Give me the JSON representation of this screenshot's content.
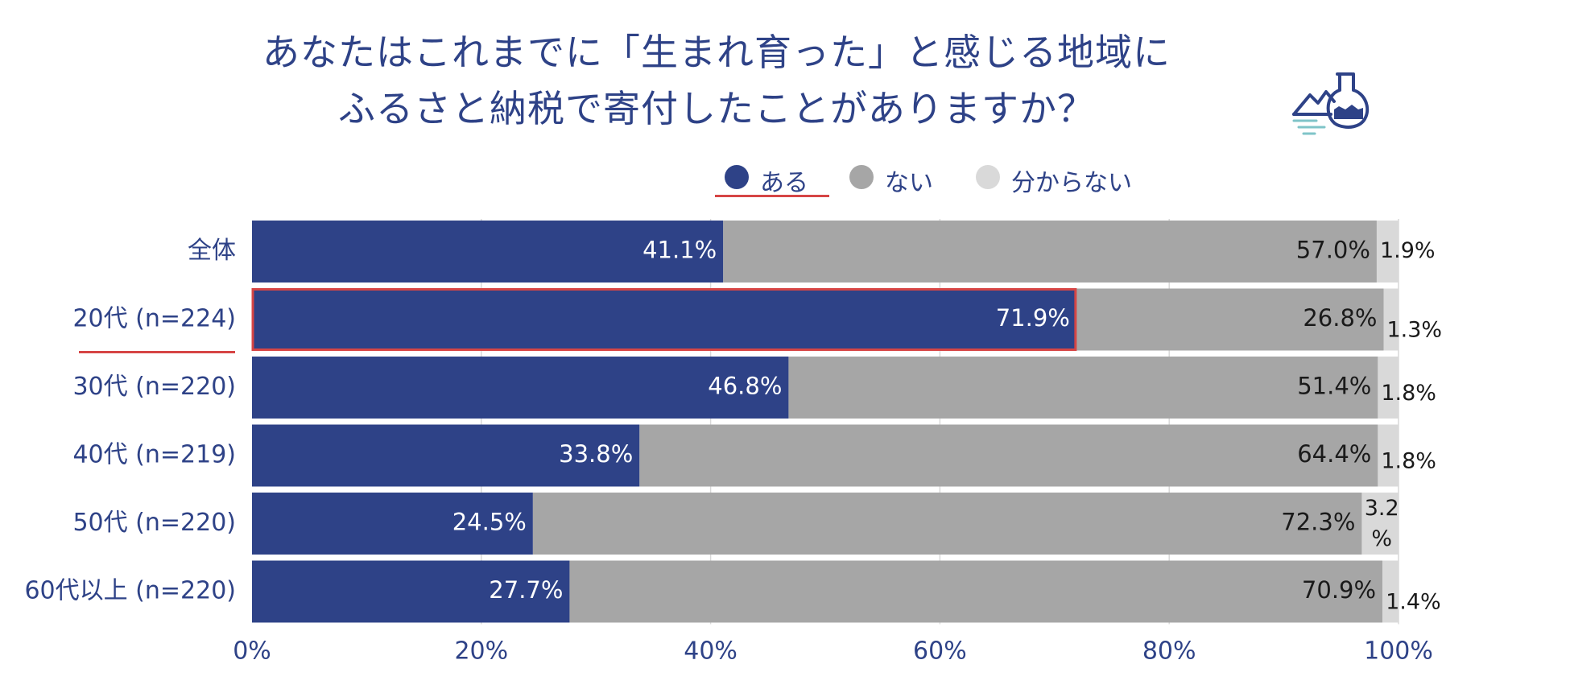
{
  "title": {
    "line1": "あなたはこれまでに「生まれ育った」と感じる地域に",
    "line2": "ふるさと納税で寄付したことがありますか？"
  },
  "legend": [
    {
      "label": "ある",
      "color": "#2e4287"
    },
    {
      "label": "ない",
      "color": "#a6a6a6"
    },
    {
      "label": "分からない",
      "color": "#d9d9d9"
    }
  ],
  "colors": {
    "text": "#2e4287",
    "highlight": "#d64545",
    "grid": "#d9d9d9"
  },
  "chart_data": {
    "type": "bar",
    "orientation": "horizontal",
    "stacked": true,
    "categories": [
      "全体",
      "20代 (n=224)",
      "30代 (n=220)",
      "40代 (n=219)",
      "50代 (n=220)",
      "60代以上 (n=220)"
    ],
    "series": [
      {
        "name": "ある",
        "values": [
          41.1,
          71.9,
          46.8,
          33.8,
          24.5,
          27.7
        ],
        "color": "#2e4287"
      },
      {
        "name": "ない",
        "values": [
          57.0,
          26.8,
          51.4,
          64.4,
          72.3,
          70.9
        ],
        "color": "#a6a6a6"
      },
      {
        "name": "分からない",
        "values": [
          1.9,
          1.3,
          1.8,
          1.8,
          3.2,
          1.4
        ],
        "color": "#d9d9d9"
      }
    ],
    "data_labels": [
      [
        "41.1%",
        "71.9%",
        "46.8%",
        "33.8%",
        "24.5%",
        "27.7%"
      ],
      [
        "57.0%",
        "26.8%",
        "51.4%",
        "64.4%",
        "72.3%",
        "70.9%"
      ],
      [
        "1.9%",
        "1.3%",
        "1.8%",
        "1.8%",
        "3.2%",
        "1.4%"
      ]
    ],
    "x_ticks": [
      "0%",
      "20%",
      "40%",
      "60%",
      "80%",
      "100%"
    ],
    "xlim": [
      0,
      100
    ],
    "grid": true,
    "legend_position": "top",
    "highlighted_category": "20代 (n=224)"
  }
}
